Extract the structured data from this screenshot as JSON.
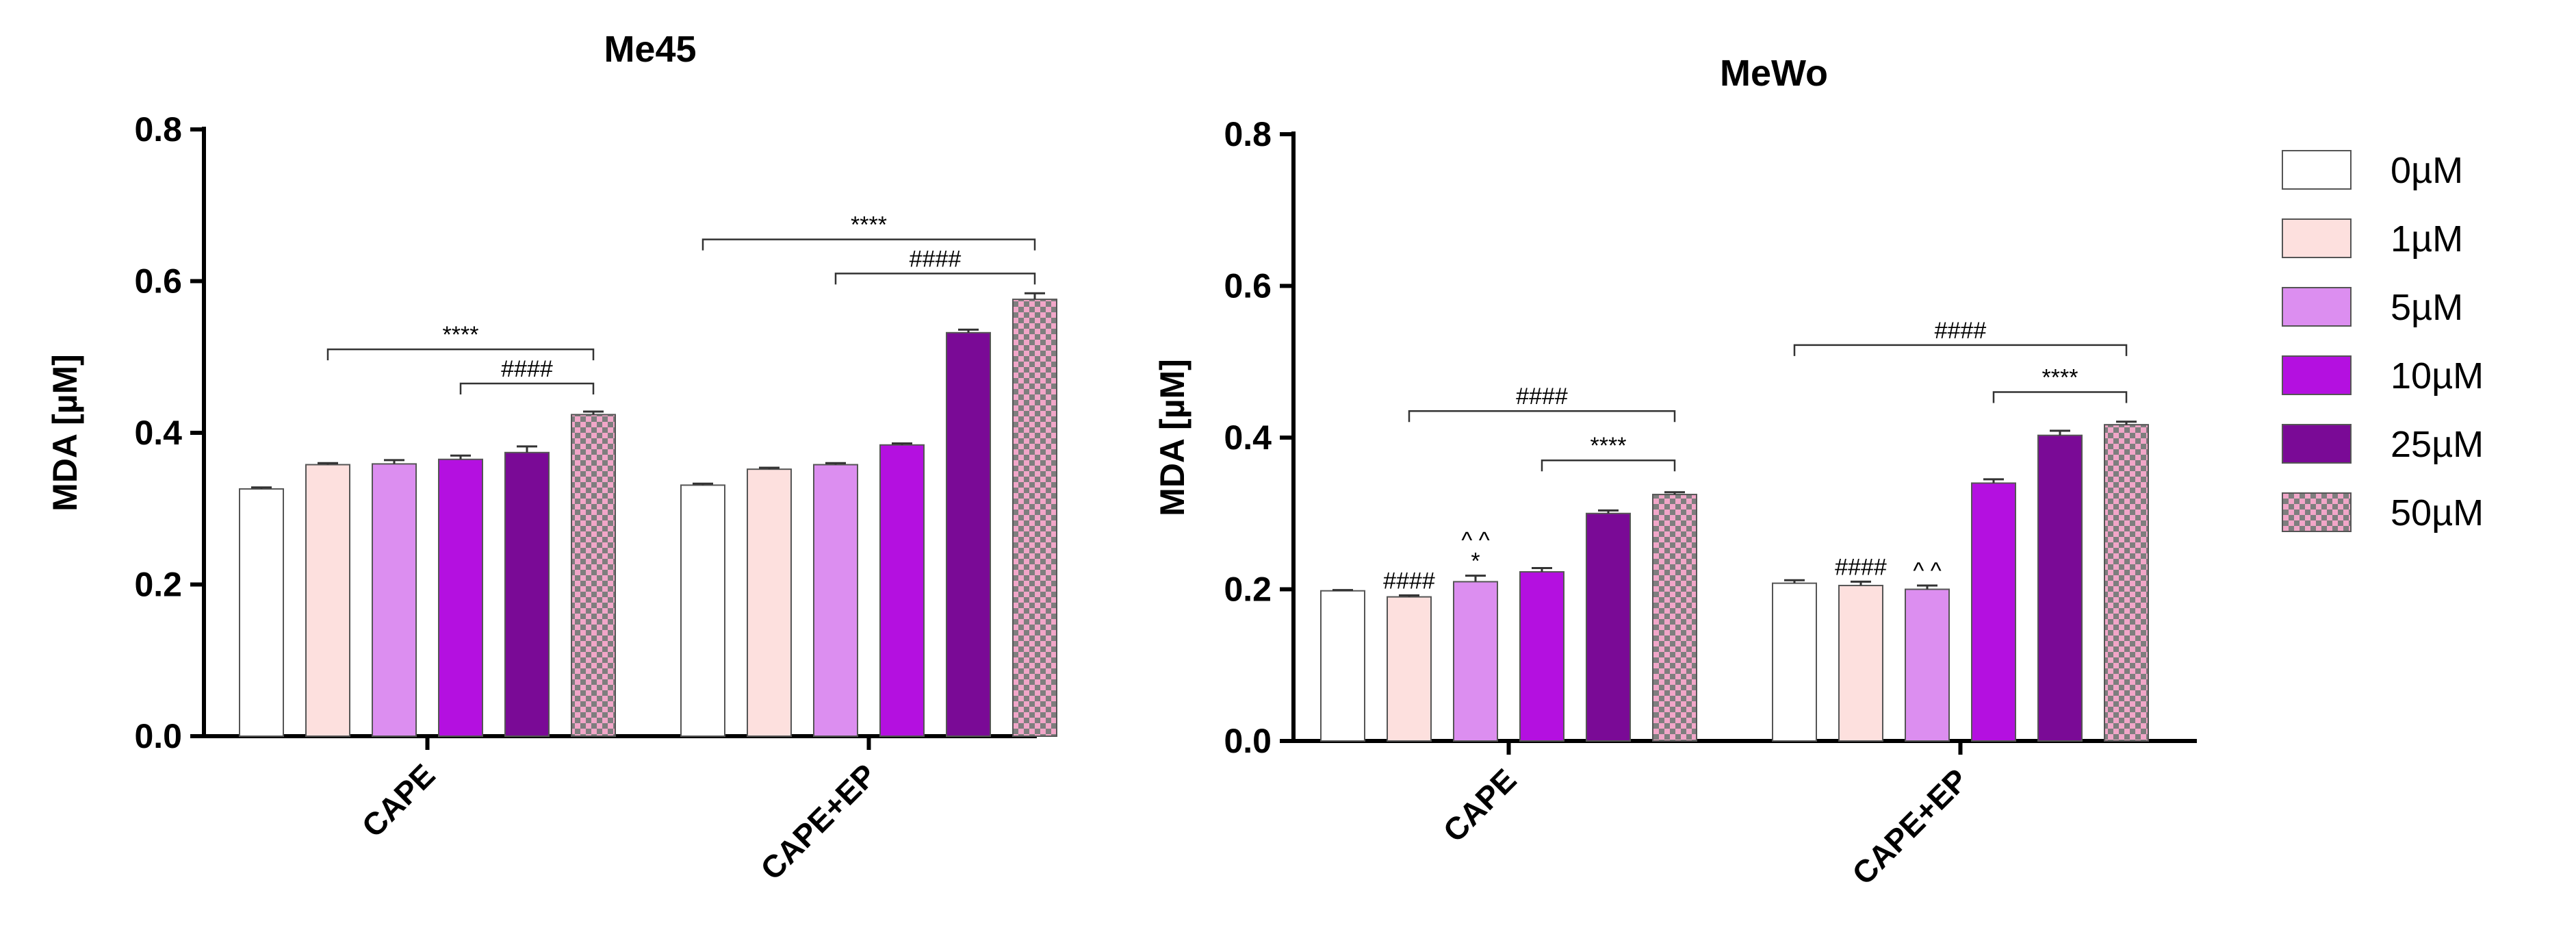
{
  "colors": {
    "0µM": "#ffffff",
    "1µM": "#fde0de",
    "5µM": "#dc8ef0",
    "10µM": "#b410e0",
    "25µM": "#7a0a96",
    "50µM_light": "#f1a6c8",
    "50µM_dark": "#7e7e7e"
  },
  "legend": {
    "items": [
      "0µM",
      "1µM",
      "5µM",
      "10µM",
      "25µM",
      "50µM"
    ]
  },
  "chart_data": [
    {
      "type": "bar",
      "title": "Me45",
      "xlabel": "",
      "ylabel": "MDA [µM]",
      "ylim": [
        0,
        0.8
      ],
      "yticks": [
        "0.0",
        "0.2",
        "0.4",
        "0.6",
        "0.8"
      ],
      "categories": [
        "CAPE",
        "CAPE+EP"
      ],
      "series": [
        {
          "name": "0µM",
          "values": [
            0.326,
            0.331
          ],
          "errors": [
            0.002,
            0.002
          ]
        },
        {
          "name": "1µM",
          "values": [
            0.358,
            0.352
          ],
          "errors": [
            0.002,
            0.002
          ]
        },
        {
          "name": "5µM",
          "values": [
            0.359,
            0.358
          ],
          "errors": [
            0.005,
            0.002
          ]
        },
        {
          "name": "10µM",
          "values": [
            0.365,
            0.384
          ],
          "errors": [
            0.005,
            0.002
          ]
        },
        {
          "name": "25µM",
          "values": [
            0.374,
            0.532
          ],
          "errors": [
            0.008,
            0.004
          ]
        },
        {
          "name": "50µM",
          "values": [
            0.424,
            0.576
          ],
          "errors": [
            0.004,
            0.008
          ]
        }
      ],
      "brackets": [
        {
          "category": 0,
          "from": 1,
          "to": 5,
          "y": 0.51,
          "label": "****"
        },
        {
          "category": 0,
          "from": 3,
          "to": 5,
          "y": 0.465,
          "label": "####"
        },
        {
          "category": 1,
          "from": 0,
          "to": 5,
          "y": 0.655,
          "label": "****"
        },
        {
          "category": 1,
          "from": 2,
          "to": 5,
          "y": 0.61,
          "label": "####"
        }
      ],
      "bar_labels": []
    },
    {
      "type": "bar",
      "title": "MeWo",
      "xlabel": "",
      "ylabel": "MDA [µM]",
      "ylim": [
        0,
        0.8
      ],
      "yticks": [
        "0.0",
        "0.2",
        "0.4",
        "0.6",
        "0.8"
      ],
      "categories": [
        "CAPE",
        "CAPE+EP"
      ],
      "series": [
        {
          "name": "0µM",
          "values": [
            0.198,
            0.208
          ],
          "errors": [
            0.001,
            0.004
          ]
        },
        {
          "name": "1µM",
          "values": [
            0.19,
            0.205
          ],
          "errors": [
            0.002,
            0.005
          ]
        },
        {
          "name": "5µM",
          "values": [
            0.21,
            0.2
          ],
          "errors": [
            0.008,
            0.005
          ]
        },
        {
          "name": "10µM",
          "values": [
            0.223,
            0.34
          ],
          "errors": [
            0.005,
            0.005
          ]
        },
        {
          "name": "25µM",
          "values": [
            0.3,
            0.403
          ],
          "errors": [
            0.004,
            0.006
          ]
        },
        {
          "name": "50µM",
          "values": [
            0.325,
            0.417
          ],
          "errors": [
            0.003,
            0.004
          ]
        }
      ],
      "brackets": [
        {
          "category": 0,
          "from": 1,
          "to": 5,
          "y": 0.435,
          "label": "####"
        },
        {
          "category": 0,
          "from": 3,
          "to": 5,
          "y": 0.37,
          "label": "****"
        },
        {
          "category": 1,
          "from": 0,
          "to": 5,
          "y": 0.522,
          "label": "####"
        },
        {
          "category": 1,
          "from": 3,
          "to": 5,
          "y": 0.46,
          "label": "****"
        }
      ],
      "bar_labels": [
        {
          "category": 0,
          "series": 1,
          "lines": [
            "####"
          ]
        },
        {
          "category": 0,
          "series": 2,
          "lines": [
            "^ ^",
            "*"
          ]
        },
        {
          "category": 1,
          "series": 1,
          "lines": [
            "####"
          ]
        },
        {
          "category": 1,
          "series": 2,
          "lines": [
            "^ ^"
          ]
        }
      ]
    }
  ]
}
